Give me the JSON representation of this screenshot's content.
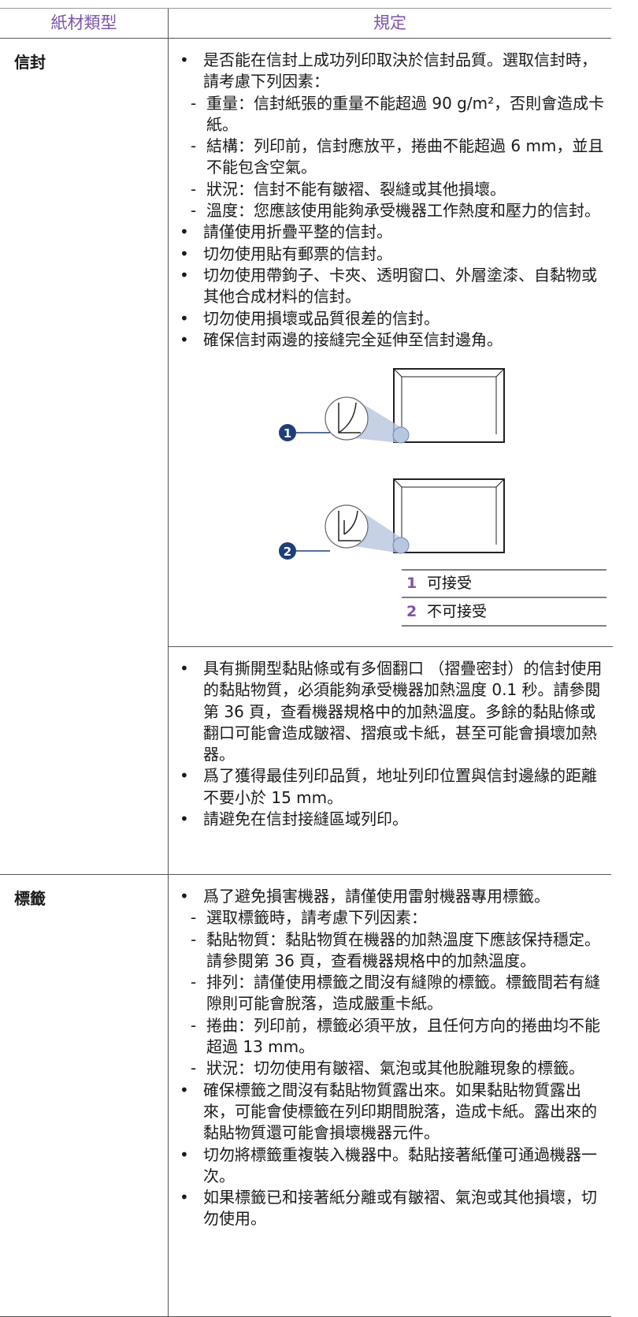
{
  "table": {
    "header": [
      "紙材類型",
      "規定"
    ],
    "rows": [
      {
        "type": "信封",
        "sections": [
          {
            "items": [
              {
                "text": "是否能在信封上成功列印取決於信封品質。選取信封時，請考慮下列因素：",
                "sub": [
                  "重量：信封紙張的重量不能超過 90 g/m²，否則會造成卡紙。",
                  "結構：列印前，信封應放平，捲曲不能超過 6 mm，並且不能包含空氣。",
                  "狀況：信封不能有皺褶、裂縫或其他損壞。",
                  "溫度：您應該使用能夠承受機器工作熱度和壓力的信封。"
                ]
              },
              {
                "text": "請僅使用折疊平整的信封。"
              },
              {
                "text": "切勿使用貼有郵票的信封。"
              },
              {
                "text": "切勿使用帶鉤子、卡夾、透明窗口、外層塗漆、自黏物或其他合成材料的信封。"
              },
              {
                "text": "切勿使用損壞或品質很差的信封。"
              },
              {
                "text": "確保信封兩邊的接縫完全延伸至信封邊角。"
              }
            ],
            "figure": {
              "legend": [
                {
                  "num": "1",
                  "label": "可接受"
                },
                {
                  "num": "2",
                  "label": "不可接受"
                }
              ]
            }
          },
          {
            "items": [
              {
                "text": "具有撕開型黏貼條或有多個翻口 （摺疊密封）的信封使用的黏貼物質，必須能夠承受機器加熱溫度 0.1 秒。請參閱第 36 頁，查看機器規格中的加熱溫度。多餘的黏貼條或翻口可能會造成皺褶、摺痕或卡紙，甚至可能會損壞加熱器。"
              },
              {
                "text": "爲了獲得最佳列印品質，地址列印位置與信封邊緣的距離不要小於 15 mm。"
              },
              {
                "text": "請避免在信封接縫區域列印。"
              }
            ]
          }
        ]
      },
      {
        "type": "標籤",
        "sections": [
          {
            "items": [
              {
                "text": "爲了避免損害機器，請僅使用雷射機器專用標籤。",
                "sub": [
                  "選取標籤時，請考慮下列因素：",
                  "黏貼物質：黏貼物質在機器的加熱溫度下應該保持穩定。請參閱第 36 頁，查看機器規格中的加熱溫度。",
                  "排列：請僅使用標籤之間沒有縫隙的標籤。標籤間若有縫隙則可能會脫落，造成嚴重卡紙。",
                  "捲曲：列印前，標籤必須平放，且任何方向的捲曲均不能超過 13 mm。",
                  "狀況：切勿使用有皺褶、氣泡或其他脫離現象的標籤。"
                ]
              },
              {
                "text": "確保標籤之間沒有黏貼物質露出來。如果黏貼物質露出來，可能會使標籤在列印期間脫落，造成卡紙。露出來的黏貼物質還可能會損壞機器元件。"
              },
              {
                "text": "切勿將標籤重複裝入機器中。黏貼接著紙僅可通過機器一次。"
              },
              {
                "text": "如果標籤已和接著紙分離或有皺褶、氣泡或其他損壞，切勿使用。"
              }
            ]
          }
        ]
      }
    ]
  }
}
